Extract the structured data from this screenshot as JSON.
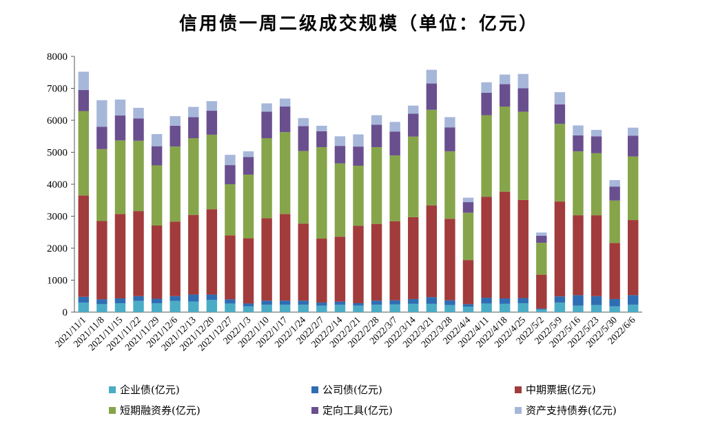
{
  "chart_data": {
    "type": "bar",
    "stacked": true,
    "title": "信用债一周二级成交规模（单位：亿元）",
    "ylim": [
      0,
      8000
    ],
    "yticks": [
      0,
      1000,
      2000,
      3000,
      4000,
      5000,
      6000,
      7000,
      8000
    ],
    "grid": false,
    "legend_position": "bottom",
    "categories": [
      "2021/11/1",
      "2021/11/8",
      "2021/11/15",
      "2021/11/22",
      "2021/11/29",
      "2021/12/6",
      "2021/12/13",
      "2021/12/20",
      "2021/12/27",
      "2022/1/3",
      "2022/1/10",
      "2022/1/17",
      "2022/1/24",
      "2022/2/7",
      "2022/2/14",
      "2022/2/21",
      "2022/2/28",
      "2022/3/7",
      "2022/3/14",
      "2022/3/21",
      "2022/3/28",
      "2022/4/4",
      "2022/4/11",
      "2022/4/18",
      "2022/4/25",
      "2022/5/2",
      "2022/5/9",
      "2022/5/16",
      "2022/5/23",
      "2022/5/30",
      "2022/6/6"
    ],
    "series": [
      {
        "name": "企业债(亿元)",
        "color": "#4bacc6",
        "values": [
          300,
          250,
          280,
          350,
          280,
          350,
          330,
          380,
          270,
          180,
          230,
          230,
          230,
          200,
          230,
          200,
          230,
          240,
          260,
          260,
          220,
          170,
          270,
          260,
          280,
          80,
          300,
          200,
          220,
          180,
          230
        ]
      },
      {
        "name": "公司债(亿元)",
        "color": "#2f6db3",
        "values": [
          180,
          150,
          150,
          150,
          140,
          150,
          220,
          170,
          130,
          90,
          130,
          130,
          130,
          100,
          100,
          80,
          130,
          130,
          150,
          210,
          150,
          80,
          180,
          170,
          160,
          30,
          190,
          330,
          280,
          230,
          300
        ]
      },
      {
        "name": "中期票据(亿元)",
        "color": "#a23b3b",
        "values": [
          3170,
          2450,
          2640,
          2660,
          2290,
          2330,
          2490,
          2670,
          2000,
          2040,
          2580,
          2710,
          2410,
          2000,
          2030,
          2420,
          2400,
          2470,
          2560,
          2870,
          2550,
          1380,
          3160,
          3340,
          3070,
          1060,
          2970,
          2500,
          2530,
          1750,
          2350
        ]
      },
      {
        "name": "短期融资券(亿元)",
        "color": "#86a54a",
        "values": [
          2640,
          2250,
          2300,
          2200,
          1880,
          2350,
          2400,
          2330,
          1600,
          1990,
          2500,
          2560,
          2270,
          2860,
          2290,
          1880,
          2400,
          2060,
          2520,
          2990,
          2110,
          1480,
          2550,
          2660,
          2760,
          1000,
          2430,
          2000,
          1940,
          1330,
          1990
        ]
      },
      {
        "name": "定向工具(亿元)",
        "color": "#6a4f8f",
        "values": [
          660,
          700,
          780,
          700,
          600,
          650,
          660,
          750,
          600,
          550,
          830,
          800,
          780,
          500,
          550,
          600,
          700,
          750,
          720,
          820,
          750,
          330,
          700,
          700,
          730,
          220,
          610,
          500,
          530,
          440,
          650
        ]
      },
      {
        "name": "资产支持债券(亿元)",
        "color": "#a6b7da",
        "values": [
          570,
          830,
          500,
          330,
          380,
          300,
          320,
          300,
          320,
          180,
          260,
          250,
          250,
          170,
          300,
          380,
          300,
          300,
          250,
          430,
          320,
          140,
          330,
          300,
          450,
          100,
          380,
          310,
          200,
          200,
          250
        ]
      }
    ]
  }
}
